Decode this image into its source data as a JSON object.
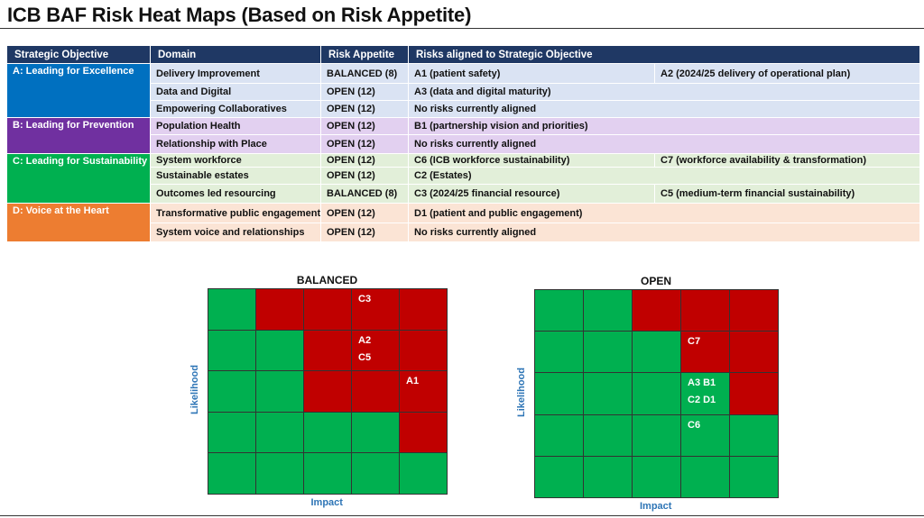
{
  "title": "ICB BAF Risk Heat Maps (Based on Risk Appetite)",
  "table": {
    "headers": [
      "Strategic Objective",
      "Domain",
      "Risk Appetite",
      "Risks aligned to Strategic Objective"
    ],
    "objectives": [
      {
        "label": "A: Leading for Excellence",
        "color": "#0070c0",
        "row_bg": "#dae3f3",
        "rows": [
          {
            "domain": "Delivery Improvement",
            "appetite": "BALANCED (8)",
            "risk1": "A1 (patient safety)",
            "risk2": "A2 (2024/25 delivery of operational plan)"
          },
          {
            "domain": "Data and Digital",
            "appetite": "OPEN (12)",
            "risk1": "A3 (data and digital maturity)",
            "risk2": ""
          },
          {
            "domain": "Empowering Collaboratives",
            "appetite": "OPEN (12)",
            "risk1": "No risks currently aligned",
            "risk2": ""
          }
        ]
      },
      {
        "label": "B: Leading for Prevention",
        "color": "#7030a0",
        "row_bg": "#e2d0f0",
        "rows": [
          {
            "domain": "Population Health",
            "appetite": "OPEN (12)",
            "risk1": "B1 (partnership vision and priorities)",
            "risk2": ""
          },
          {
            "domain": "Relationship with Place",
            "appetite": "OPEN (12)",
            "risk1": "No risks currently aligned",
            "risk2": ""
          }
        ]
      },
      {
        "label": "C: Leading for Sustainability",
        "color": "#00b050",
        "row_bg": "#e2efd9",
        "rows": [
          {
            "domain": "System workforce",
            "appetite": "OPEN (12)",
            "risk1": "C6 (ICB workforce sustainability)",
            "risk2": "C7 (workforce availability & transformation)"
          },
          {
            "domain": "Sustainable estates",
            "appetite": "OPEN (12)",
            "risk1": "C2 (Estates)",
            "risk2": ""
          },
          {
            "domain": "Outcomes led resourcing",
            "appetite": "BALANCED (8)",
            "risk1": "C3 (2024/25 financial resource)",
            "risk2": "C5 (medium-term financial sustainability)"
          }
        ]
      },
      {
        "label": "D: Voice at the Heart",
        "color": "#ed7d31",
        "row_bg": "#fbe4d5",
        "rows": [
          {
            "domain": "Transformative public engagement",
            "appetite": "OPEN (12)",
            "risk1": "D1 (patient and public engagement)",
            "risk2": ""
          },
          {
            "domain": "System voice and relationships",
            "appetite": "OPEN (12)",
            "risk1": "No risks currently aligned",
            "risk2": ""
          }
        ]
      }
    ]
  },
  "heatmaps": [
    {
      "title": "BALANCED",
      "x_label": "Impact",
      "y_label": "Likelihood",
      "grid": [
        [
          "g",
          "r",
          "r",
          "r",
          "r"
        ],
        [
          "g",
          "g",
          "r",
          "r",
          "r"
        ],
        [
          "g",
          "g",
          "r",
          "r",
          "r"
        ],
        [
          "g",
          "g",
          "g",
          "g",
          "r"
        ],
        [
          "g",
          "g",
          "g",
          "g",
          "g"
        ]
      ],
      "labels": [
        {
          "text": "C3",
          "row": 0,
          "col": 3,
          "line": 0
        },
        {
          "text": "A2",
          "row": 1,
          "col": 3,
          "line": 0
        },
        {
          "text": "C5",
          "row": 1,
          "col": 3,
          "line": 1
        },
        {
          "text": "A1",
          "row": 2,
          "col": 4,
          "line": 0
        }
      ]
    },
    {
      "title": "OPEN",
      "x_label": "Impact",
      "y_label": "Likelihood",
      "grid": [
        [
          "g",
          "g",
          "r",
          "r",
          "r"
        ],
        [
          "g",
          "g",
          "g",
          "r",
          "r"
        ],
        [
          "g",
          "g",
          "g",
          "g",
          "r"
        ],
        [
          "g",
          "g",
          "g",
          "g",
          "g"
        ],
        [
          "g",
          "g",
          "g",
          "g",
          "g"
        ]
      ],
      "labels": [
        {
          "text": "C7",
          "row": 1,
          "col": 3,
          "line": 0
        },
        {
          "text": "A3   B1",
          "row": 2,
          "col": 3,
          "line": 0
        },
        {
          "text": "C2   D1",
          "row": 2,
          "col": 3,
          "line": 1
        },
        {
          "text": "C6",
          "row": 3,
          "col": 3,
          "line": 0
        }
      ]
    }
  ]
}
